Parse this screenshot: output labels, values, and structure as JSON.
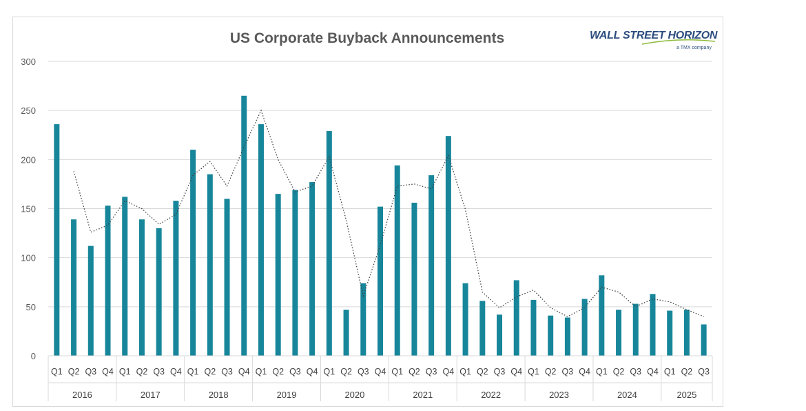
{
  "logo": {
    "name": "WALL STREET HORIZON",
    "tagline": "a TMX company"
  },
  "chart_data": {
    "type": "bar",
    "title": "US Corporate Buyback Announcements",
    "xlabel": "",
    "ylabel": "",
    "ylim": [
      0,
      300
    ],
    "yticks": [
      0,
      50,
      100,
      150,
      200,
      250,
      300
    ],
    "grid": true,
    "legend": "none",
    "years": [
      {
        "label": "2016",
        "quarters": [
          "Q1",
          "Q2",
          "Q3",
          "Q4"
        ]
      },
      {
        "label": "2017",
        "quarters": [
          "Q1",
          "Q2",
          "Q3",
          "Q4"
        ]
      },
      {
        "label": "2018",
        "quarters": [
          "Q1",
          "Q2",
          "Q3",
          "Q4"
        ]
      },
      {
        "label": "2019",
        "quarters": [
          "Q1",
          "Q2",
          "Q3",
          "Q4"
        ]
      },
      {
        "label": "2020",
        "quarters": [
          "Q1",
          "Q2",
          "Q3",
          "Q4"
        ]
      },
      {
        "label": "2021",
        "quarters": [
          "Q1",
          "Q2",
          "Q3",
          "Q4"
        ]
      },
      {
        "label": "2022",
        "quarters": [
          "Q1",
          "Q2",
          "Q3",
          "Q4"
        ]
      },
      {
        "label": "2023",
        "quarters": [
          "Q1",
          "Q2",
          "Q3",
          "Q4"
        ]
      },
      {
        "label": "2024",
        "quarters": [
          "Q1",
          "Q2",
          "Q3",
          "Q4"
        ]
      },
      {
        "label": "2025",
        "quarters": [
          "Q1",
          "Q2",
          "Q3"
        ]
      }
    ],
    "series": [
      {
        "name": "Buyback announcements",
        "type": "bar",
        "color": "#17869a",
        "values": [
          236,
          139,
          112,
          153,
          162,
          139,
          130,
          158,
          210,
          185,
          160,
          265,
          236,
          165,
          169,
          177,
          229,
          47,
          74,
          152,
          194,
          156,
          184,
          224,
          74,
          56,
          42,
          77,
          57,
          41,
          39,
          58,
          82,
          47,
          53,
          63,
          46,
          47,
          32
        ]
      },
      {
        "name": "Moving average",
        "type": "line",
        "style": "dotted",
        "color": "#404040",
        "start_index": 1,
        "values": [
          188,
          126,
          133,
          158,
          150,
          134,
          144,
          184,
          198,
          173,
          213,
          250,
          200,
          167,
          173,
          203,
          138,
          61,
          113,
          173,
          175,
          170,
          204,
          149,
          65,
          49,
          60,
          67,
          49,
          40,
          49,
          70,
          65,
          50,
          58,
          55,
          47,
          40
        ]
      }
    ]
  }
}
